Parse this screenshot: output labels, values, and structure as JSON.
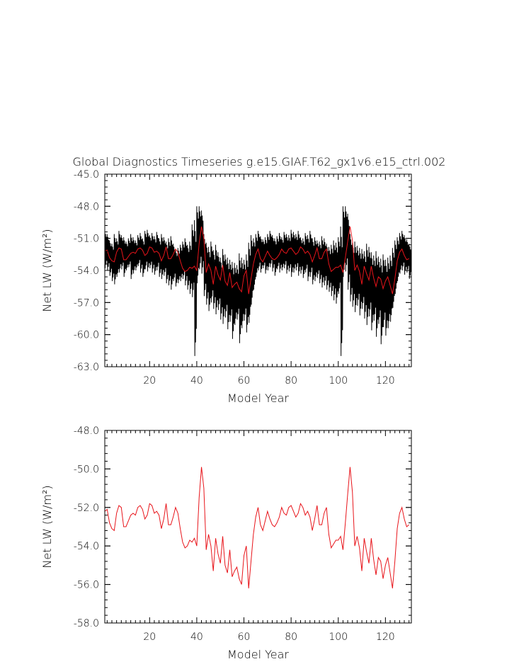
{
  "title": "Global Diagnostics Timeseries g.e15.GIAF.T62_gx1v6.e15_ctrl.002",
  "colors": {
    "annual": "#000000",
    "smooth": "#e8141a",
    "axis": "#000000"
  },
  "chart_data": [
    {
      "type": "line",
      "ylabel": "Net LW (W/m²)",
      "xlabel": "Model Year",
      "xlim": [
        1,
        131
      ],
      "ylim": [
        -63.0,
        -45.0
      ],
      "xticks": [
        20,
        40,
        60,
        80,
        100,
        120
      ],
      "xtick_labels": [
        "20",
        "40",
        "60",
        "80",
        "100",
        "120"
      ],
      "yticks": [
        -63.0,
        -60.0,
        -57.0,
        -54.0,
        -51.0,
        -48.0,
        -45.0
      ],
      "ytick_labels": [
        "-63.0",
        "-60.0",
        "-57.0",
        "-54.0",
        "-51.0",
        "-48.0",
        "-45.0"
      ],
      "grid": false,
      "series": [
        {
          "kind": "annual-cycle",
          "color": "#000000",
          "x": [
            1,
            2,
            3,
            4,
            5,
            6,
            7,
            8,
            9,
            10,
            11,
            12,
            13,
            14,
            15,
            16,
            17,
            18,
            19,
            20,
            21,
            22,
            23,
            24,
            25,
            26,
            27,
            28,
            29,
            30,
            31,
            32,
            33,
            34,
            35,
            36,
            37,
            38,
            39,
            40,
            41,
            42,
            43,
            44,
            45,
            46,
            47,
            48,
            49,
            50,
            51,
            52,
            53,
            54,
            55,
            56,
            57,
            58,
            59,
            60,
            61,
            62,
            63,
            64,
            65,
            66,
            67,
            68,
            69,
            70,
            71,
            72,
            73,
            74,
            75,
            76,
            77,
            78,
            79,
            80,
            81,
            82,
            83,
            84,
            85,
            86,
            87,
            88,
            89,
            90,
            91,
            92,
            93,
            94,
            95,
            96,
            97,
            98,
            99,
            100,
            101,
            102,
            103,
            104,
            105,
            106,
            107,
            108,
            109,
            110,
            111,
            112,
            113,
            114,
            115,
            116,
            117,
            118,
            119,
            120,
            121,
            122,
            123,
            124,
            125,
            126,
            127,
            128,
            129,
            130
          ],
          "max": [
            -50.3,
            -50.6,
            -51.2,
            -51.5,
            -50.6,
            -51.0,
            -50.3,
            -50.7,
            -50.9,
            -51.3,
            -51.0,
            -50.6,
            -50.9,
            -51.2,
            -50.7,
            -50.5,
            -51.0,
            -50.3,
            -50.2,
            -50.7,
            -50.5,
            -50.8,
            -50.4,
            -51.0,
            -50.6,
            -50.9,
            -51.3,
            -51.0,
            -50.8,
            -51.5,
            -52.1,
            -51.9,
            -51.6,
            -51.3,
            -51.0,
            -51.6,
            -51.3,
            -49.7,
            -49.3,
            -48.0,
            -48.0,
            -48.4,
            -50.6,
            -51.4,
            -51.8,
            -51.3,
            -52.1,
            -51.6,
            -52.3,
            -52.8,
            -52.0,
            -52.5,
            -52.8,
            -53.0,
            -53.2,
            -53.3,
            -53.5,
            -52.4,
            -52.8,
            -53.0,
            -52.5,
            -51.4,
            -50.7,
            -51.0,
            -50.6,
            -50.3,
            -50.8,
            -51.1,
            -50.9,
            -50.6,
            -50.3,
            -50.7,
            -51.0,
            -50.8,
            -50.5,
            -50.9,
            -50.4,
            -50.6,
            -50.7,
            -50.2,
            -50.4,
            -50.6,
            -50.3,
            -50.9,
            -51.0,
            -50.5,
            -50.7,
            -50.3,
            -51.0,
            -50.9,
            -51.2,
            -51.3,
            -50.8,
            -51.0,
            -51.5,
            -51.8,
            -51.6,
            -51.2,
            -51.4,
            -50.9,
            -49.9,
            -48.0,
            -48.0,
            -48.7,
            -50.6,
            -51.4,
            -51.3,
            -51.7,
            -51.9,
            -52.0,
            -52.2,
            -51.5,
            -51.8,
            -52.3,
            -52.6,
            -52.2,
            -52.7,
            -52.9,
            -52.5,
            -53.0,
            -52.8,
            -52.6,
            -51.9,
            -51.2,
            -50.9,
            -50.5,
            -50.3,
            -50.7,
            -51.1,
            -51.5
          ],
          "min": [
            -53.8,
            -54.0,
            -54.5,
            -55.0,
            -55.3,
            -54.6,
            -54.2,
            -53.9,
            -54.6,
            -54.0,
            -53.7,
            -54.8,
            -54.3,
            -54.0,
            -53.6,
            -54.2,
            -54.6,
            -53.9,
            -54.1,
            -53.8,
            -54.2,
            -54.4,
            -54.0,
            -54.6,
            -54.8,
            -54.5,
            -55.2,
            -55.4,
            -55.8,
            -55.0,
            -55.5,
            -55.2,
            -55.0,
            -54.8,
            -55.4,
            -55.8,
            -56.2,
            -56.5,
            -62.0,
            -55.2,
            -53.9,
            -54.3,
            -56.4,
            -57.2,
            -57.8,
            -57.0,
            -57.6,
            -58.1,
            -57.7,
            -58.6,
            -59.0,
            -58.4,
            -59.5,
            -58.8,
            -60.4,
            -59.1,
            -58.6,
            -60.8,
            -59.4,
            -58.7,
            -59.8,
            -58.9,
            -57.2,
            -55.8,
            -54.6,
            -54.0,
            -54.2,
            -53.8,
            -54.3,
            -54.0,
            -53.7,
            -54.1,
            -54.5,
            -53.9,
            -54.2,
            -54.0,
            -53.8,
            -54.3,
            -54.1,
            -54.6,
            -54.2,
            -54.0,
            -54.5,
            -54.3,
            -54.7,
            -54.2,
            -55.0,
            -54.6,
            -55.3,
            -55.0,
            -54.7,
            -55.2,
            -55.6,
            -55.4,
            -55.8,
            -56.0,
            -56.4,
            -56.8,
            -57.1,
            -56.2,
            -62.0,
            -54.6,
            -54.1,
            -55.8,
            -56.9,
            -57.4,
            -57.9,
            -57.3,
            -58.2,
            -57.6,
            -58.5,
            -59.1,
            -58.3,
            -59.6,
            -58.7,
            -60.2,
            -59.0,
            -60.9,
            -59.3,
            -60.1,
            -59.4,
            -58.8,
            -57.5,
            -56.2,
            -55.0,
            -54.3,
            -54.0,
            -54.4,
            -54.2,
            -54.8
          ]
        },
        {
          "kind": "annual-mean",
          "color": "#e8141a",
          "x": [
            1,
            2,
            3,
            4,
            5,
            6,
            7,
            8,
            9,
            10,
            11,
            12,
            13,
            14,
            15,
            16,
            17,
            18,
            19,
            20,
            21,
            22,
            23,
            24,
            25,
            26,
            27,
            28,
            29,
            30,
            31,
            32,
            33,
            34,
            35,
            36,
            37,
            38,
            39,
            40,
            41,
            42,
            43,
            44,
            45,
            46,
            47,
            48,
            49,
            50,
            51,
            52,
            53,
            54,
            55,
            56,
            57,
            58,
            59,
            60,
            61,
            62,
            63,
            64,
            65,
            66,
            67,
            68,
            69,
            70,
            71,
            72,
            73,
            74,
            75,
            76,
            77,
            78,
            79,
            80,
            81,
            82,
            83,
            84,
            85,
            86,
            87,
            88,
            89,
            90,
            91,
            92,
            93,
            94,
            95,
            96,
            97,
            98,
            99,
            100,
            101,
            102,
            103,
            104,
            105,
            106,
            107,
            108,
            109,
            110,
            111,
            112,
            113,
            114,
            115,
            116,
            117,
            118,
            119,
            120,
            121,
            122,
            123,
            124,
            125,
            126,
            127,
            128,
            129,
            130
          ],
          "y": [
            -52.2,
            -52.1,
            -52.8,
            -53.1,
            -53.2,
            -52.3,
            -51.9,
            -52.0,
            -53.0,
            -53.0,
            -52.7,
            -52.4,
            -52.3,
            -52.4,
            -52.0,
            -51.9,
            -52.1,
            -52.6,
            -52.4,
            -51.8,
            -51.9,
            -52.3,
            -52.2,
            -52.4,
            -53.1,
            -52.6,
            -51.8,
            -52.9,
            -52.9,
            -52.5,
            -52.0,
            -52.3,
            -53.1,
            -53.8,
            -54.1,
            -54.0,
            -53.7,
            -53.8,
            -53.6,
            -54.0,
            -51.5,
            -49.9,
            -51.0,
            -54.2,
            -53.4,
            -54.0,
            -55.3,
            -53.6,
            -54.4,
            -54.9,
            -53.5,
            -55.0,
            -55.4,
            -54.2,
            -55.6,
            -55.3,
            -55.1,
            -55.7,
            -56.0,
            -54.5,
            -54.0,
            -56.2,
            -54.8,
            -53.4,
            -52.5,
            -52.0,
            -52.9,
            -53.2,
            -52.7,
            -52.2,
            -52.6,
            -52.9,
            -53.0,
            -52.8,
            -52.5,
            -52.0,
            -52.3,
            -52.4,
            -52.0,
            -51.9,
            -52.2,
            -52.5,
            -52.3,
            -51.8,
            -52.0,
            -52.4,
            -52.2,
            -52.5,
            -53.2,
            -52.6,
            -51.9,
            -52.9,
            -52.9,
            -52.3,
            -52.0,
            -53.4,
            -54.1,
            -53.9,
            -53.7,
            -53.7,
            -53.5,
            -54.2,
            -52.8,
            -51.3,
            -49.9,
            -51.2,
            -54.0,
            -53.5,
            -54.1,
            -55.3,
            -53.6,
            -54.3,
            -54.9,
            -53.6,
            -54.7,
            -55.5,
            -54.6,
            -54.8,
            -55.7,
            -55.0,
            -54.6,
            -55.4,
            -56.2,
            -54.8,
            -53.1,
            -52.3,
            -52.0,
            -52.6,
            -53.0,
            -52.9
          ]
        }
      ]
    },
    {
      "type": "line",
      "ylabel": "Net LW (W/m²)",
      "xlabel": "Model Year",
      "xlim": [
        1,
        131
      ],
      "ylim": [
        -58.0,
        -48.0
      ],
      "xticks": [
        20,
        40,
        60,
        80,
        100,
        120
      ],
      "xtick_labels": [
        "20",
        "40",
        "60",
        "80",
        "100",
        "120"
      ],
      "yticks": [
        -58.0,
        -56.0,
        -54.0,
        -52.0,
        -50.0,
        -48.0
      ],
      "ytick_labels": [
        "-58.0",
        "-56.0",
        "-54.0",
        "-52.0",
        "-50.0",
        "-48.0"
      ],
      "grid": false,
      "series": [
        {
          "kind": "annual-mean",
          "color": "#e8141a",
          "x": [
            1,
            2,
            3,
            4,
            5,
            6,
            7,
            8,
            9,
            10,
            11,
            12,
            13,
            14,
            15,
            16,
            17,
            18,
            19,
            20,
            21,
            22,
            23,
            24,
            25,
            26,
            27,
            28,
            29,
            30,
            31,
            32,
            33,
            34,
            35,
            36,
            37,
            38,
            39,
            40,
            41,
            42,
            43,
            44,
            45,
            46,
            47,
            48,
            49,
            50,
            51,
            52,
            53,
            54,
            55,
            56,
            57,
            58,
            59,
            60,
            61,
            62,
            63,
            64,
            65,
            66,
            67,
            68,
            69,
            70,
            71,
            72,
            73,
            74,
            75,
            76,
            77,
            78,
            79,
            80,
            81,
            82,
            83,
            84,
            85,
            86,
            87,
            88,
            89,
            90,
            91,
            92,
            93,
            94,
            95,
            96,
            97,
            98,
            99,
            100,
            101,
            102,
            103,
            104,
            105,
            106,
            107,
            108,
            109,
            110,
            111,
            112,
            113,
            114,
            115,
            116,
            117,
            118,
            119,
            120,
            121,
            122,
            123,
            124,
            125,
            126,
            127,
            128,
            129,
            130
          ],
          "y": [
            -52.2,
            -52.1,
            -52.8,
            -53.1,
            -53.2,
            -52.3,
            -51.9,
            -52.0,
            -53.0,
            -53.0,
            -52.7,
            -52.4,
            -52.3,
            -52.4,
            -52.0,
            -51.9,
            -52.1,
            -52.6,
            -52.4,
            -51.8,
            -51.9,
            -52.3,
            -52.2,
            -52.4,
            -53.1,
            -52.6,
            -51.8,
            -52.9,
            -52.9,
            -52.5,
            -52.0,
            -52.3,
            -53.1,
            -53.8,
            -54.1,
            -54.0,
            -53.7,
            -53.8,
            -53.6,
            -54.0,
            -51.5,
            -49.9,
            -51.0,
            -54.2,
            -53.4,
            -54.0,
            -55.3,
            -53.6,
            -54.4,
            -54.9,
            -53.5,
            -55.0,
            -55.4,
            -54.2,
            -55.6,
            -55.3,
            -55.1,
            -55.7,
            -56.0,
            -54.5,
            -54.0,
            -56.2,
            -54.8,
            -53.4,
            -52.5,
            -52.0,
            -52.9,
            -53.2,
            -52.7,
            -52.2,
            -52.6,
            -52.9,
            -53.0,
            -52.8,
            -52.5,
            -52.0,
            -52.3,
            -52.4,
            -52.0,
            -51.9,
            -52.2,
            -52.5,
            -52.3,
            -51.8,
            -52.0,
            -52.4,
            -52.2,
            -52.5,
            -53.2,
            -52.6,
            -51.9,
            -52.9,
            -52.9,
            -52.3,
            -52.0,
            -53.4,
            -54.1,
            -53.9,
            -53.7,
            -53.7,
            -53.5,
            -54.2,
            -52.8,
            -51.3,
            -49.9,
            -51.2,
            -54.0,
            -53.5,
            -54.1,
            -55.3,
            -53.6,
            -54.3,
            -54.9,
            -53.6,
            -54.7,
            -55.5,
            -54.6,
            -54.8,
            -55.7,
            -55.0,
            -54.6,
            -55.4,
            -56.2,
            -54.8,
            -53.1,
            -52.3,
            -52.0,
            -52.6,
            -53.0,
            -52.9
          ]
        }
      ]
    }
  ]
}
